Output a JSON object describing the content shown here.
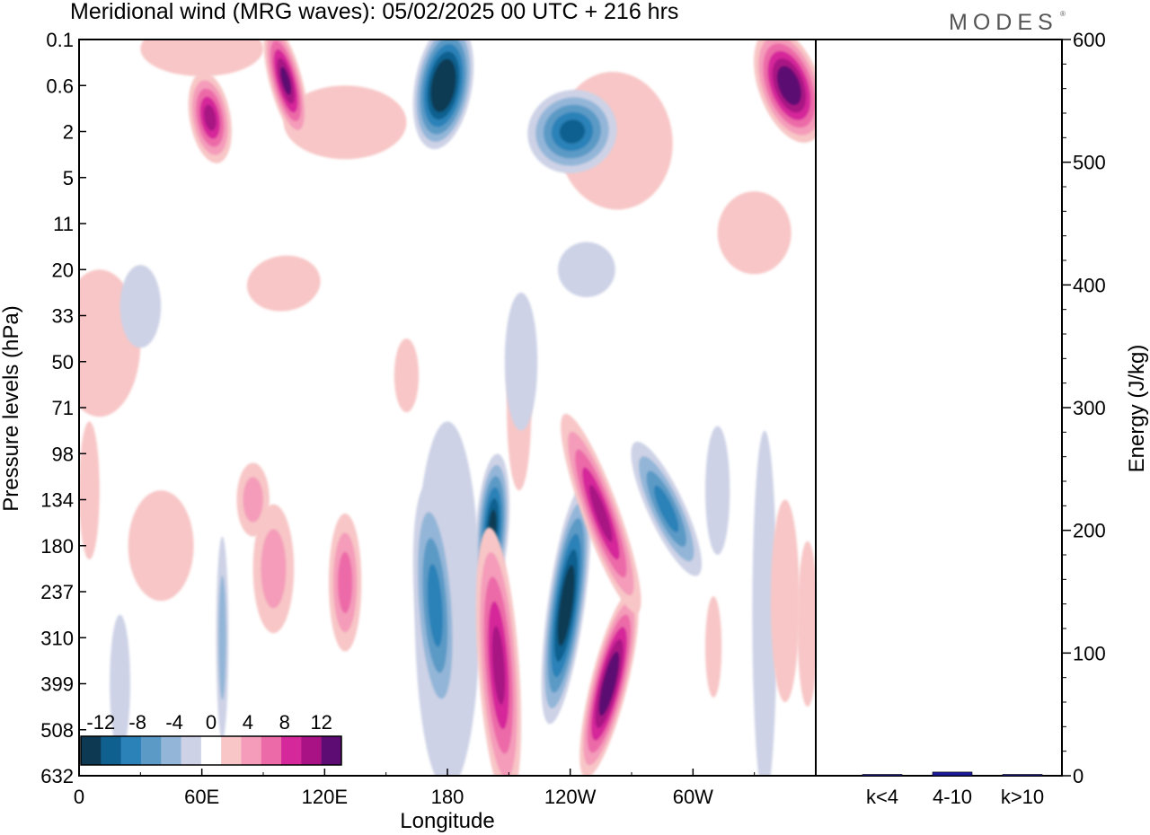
{
  "title": "Meridional wind (MRG waves):  05/02/2025  00 UTC  + 216 hrs",
  "logo_text": "MODES",
  "logo_mark": "®",
  "chart_data": [
    {
      "type": "heatmap",
      "xlabel": "Longitude",
      "ylabel": "Pressure levels (hPa)",
      "x_ticks": [
        "0",
        "60E",
        "120E",
        "180",
        "120W",
        "60W"
      ],
      "x_tick_degrees": [
        0,
        60,
        120,
        180,
        240,
        300
      ],
      "xlim": [
        0,
        360
      ],
      "y_ticks": [
        "0.1",
        "0.6",
        "2",
        "5",
        "11",
        "20",
        "33",
        "50",
        "71",
        "98",
        "134",
        "180",
        "237",
        "310",
        "399",
        "508",
        "632"
      ],
      "colorbar": {
        "labels": [
          "-12",
          "-8",
          "-4",
          "0",
          "4",
          "8",
          "12"
        ],
        "levels": [
          -14,
          -12,
          -10,
          -8,
          -6,
          -4,
          -2,
          2,
          4,
          6,
          8,
          10,
          12,
          14
        ],
        "colors": [
          "#0d3a52",
          "#10608f",
          "#2a82b8",
          "#5b9ac6",
          "#93b6d8",
          "#cdd2e6",
          "#ffffff",
          "#f8c6c6",
          "#f49cba",
          "#ec6aa8",
          "#d5289a",
          "#a81284",
          "#5c0c72"
        ]
      },
      "features": [
        {
          "lon": 238,
          "level": "237",
          "value": -15
        },
        {
          "lon": 174,
          "level": "237",
          "value": -9
        },
        {
          "lon": 202,
          "level": "134",
          "value": -12
        },
        {
          "lon": 205,
          "level": "399",
          "value": 10
        },
        {
          "lon": 259,
          "level": "399",
          "value": 14
        },
        {
          "lon": 255,
          "level": "134",
          "value": 10
        },
        {
          "lon": 287,
          "level": "134",
          "value": -8
        },
        {
          "lon": 178,
          "level": "0.6",
          "value": -16
        },
        {
          "lon": 101,
          "level": "0.6",
          "value": 12
        },
        {
          "lon": 64,
          "level": "2",
          "value": 11
        },
        {
          "lon": 347,
          "level": "0.6",
          "value": 14
        },
        {
          "lon": 241,
          "level": "2",
          "value": -11
        }
      ]
    },
    {
      "type": "bar",
      "categories": [
        "k<4",
        "4-10",
        "k>10"
      ],
      "values": [
        1,
        3,
        1
      ],
      "ylabel": "Energy (J/kg)",
      "ylim": [
        0,
        600
      ],
      "y_ticks": [
        0,
        100,
        200,
        300,
        400,
        500,
        600
      ],
      "bar_color": "#1a1a9a"
    }
  ]
}
